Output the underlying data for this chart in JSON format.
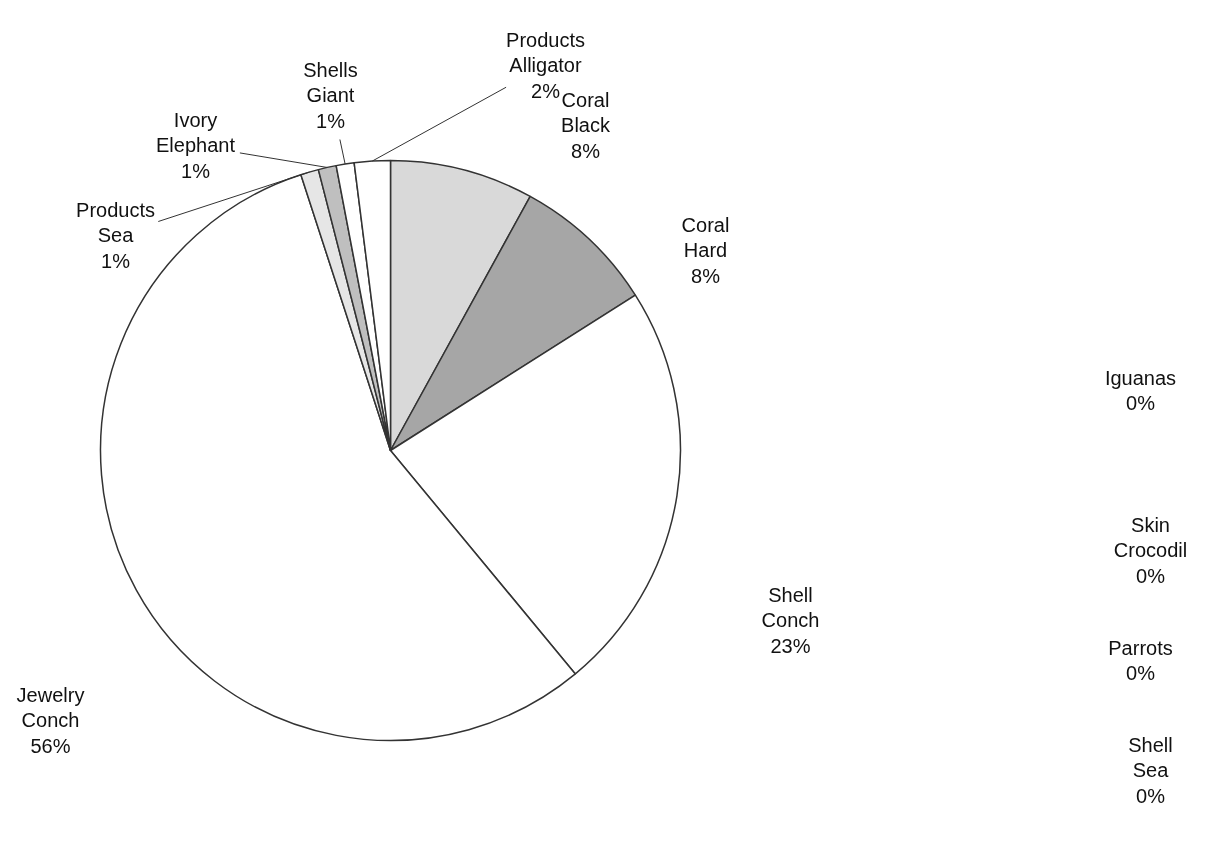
{
  "chart_data": {
    "type": "pie",
    "categories": [
      "Coral Black",
      "Coral Hard",
      "Shell Conch",
      "Jewelry Conch",
      "Products Sea",
      "Ivory Elephant",
      "Shells Giant",
      "Products Alligator",
      "Iguanas",
      "Skin Crocodil",
      "Parrots",
      "Shell Sea"
    ],
    "values": [
      8,
      8,
      23,
      56,
      1,
      1,
      1,
      2,
      0,
      0,
      0,
      0
    ],
    "value_labels": [
      "8%",
      "8%",
      "23%",
      "56%",
      "1%",
      "1%",
      "1%",
      "2%",
      "0%",
      "0%",
      "0%",
      "0%"
    ],
    "colors": [
      "#d9d9d9",
      "#a6a6a6",
      "#ffffff",
      "#ffffff",
      "#e6e6e6",
      "#bfbfbf",
      "#ffffff",
      "#ffffff",
      "#ffffff",
      "#ffffff",
      "#ffffff",
      "#ffffff"
    ]
  }
}
